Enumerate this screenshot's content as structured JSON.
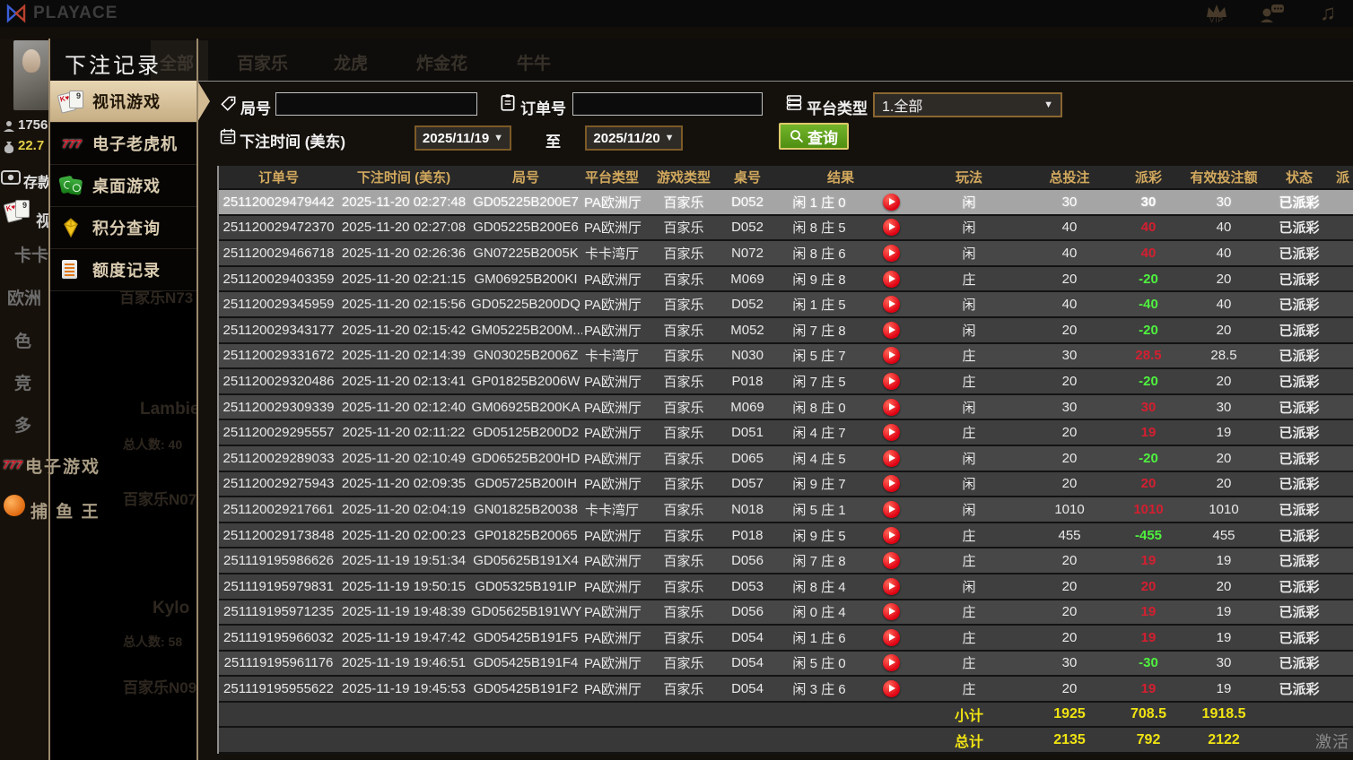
{
  "topbar": {
    "brand": "PLAYACE",
    "vip_label": "VIP"
  },
  "background": {
    "rail": {
      "players_count": "1756",
      "balance": "22.7",
      "deposit_label": "存款",
      "video_label": "视",
      "categories": [
        "卡卡",
        "欧洲",
        "色",
        "竞",
        "多"
      ],
      "slots_label": "电子游戏",
      "fishing_label": "捕 鱼 王"
    },
    "ghost_tabs": [
      "全部",
      "百家乐",
      "龙虎",
      "炸金花",
      "牛牛"
    ],
    "lobby_cards": [
      "百家乐N73",
      "Lambie",
      "总人数: 40",
      "百家乐N07",
      "Kylo",
      "总人数: 58",
      "百家乐N09"
    ]
  },
  "modal": {
    "title": "下注记录",
    "sidebar": {
      "items": [
        {
          "label": "视讯游戏",
          "icon": "video-cards-icon",
          "active": true
        },
        {
          "label": "电子老虎机",
          "icon": "slots-777-icon",
          "active": false
        },
        {
          "label": "桌面游戏",
          "icon": "table-games-icon",
          "active": false
        },
        {
          "label": "积分查询",
          "icon": "points-diamond-icon",
          "active": false
        },
        {
          "label": "额度记录",
          "icon": "records-doc-icon",
          "active": false
        }
      ]
    },
    "filters": {
      "round_label": "局号",
      "round_value": "",
      "order_label": "订单号",
      "order_value": "",
      "platform_label": "平台类型",
      "platform_value": "1.全部",
      "time_label": "下注时间 (美东)",
      "date_from": "2025/11/19",
      "to_label": "至",
      "date_to": "2025/11/20",
      "search_label": "查询"
    },
    "table": {
      "headers": [
        "订单号",
        "下注时间 (美东)",
        "局号",
        "平台类型",
        "游戏类型",
        "桌号",
        "结果",
        "玩法",
        "总投注",
        "派彩",
        "有效投注额",
        "状态"
      ],
      "clipped_header": "派",
      "selected_row": 0,
      "rows": [
        [
          "251120029479442",
          "2025-11-20 02:27:48",
          "GD05225B200E7",
          "PA欧洲厅",
          "百家乐",
          "D052",
          "闲 1 庄 0",
          "闲",
          "30",
          "30",
          "30",
          "已派彩"
        ],
        [
          "251120029472370",
          "2025-11-20 02:27:08",
          "GD05225B200E6",
          "PA欧洲厅",
          "百家乐",
          "D052",
          "闲 8 庄 5",
          "闲",
          "40",
          "40",
          "40",
          "已派彩"
        ],
        [
          "251120029466718",
          "2025-11-20 02:26:36",
          "GN07225B2005K",
          "卡卡湾厅",
          "百家乐",
          "N072",
          "闲 8 庄 6",
          "闲",
          "40",
          "40",
          "40",
          "已派彩"
        ],
        [
          "251120029403359",
          "2025-11-20 02:21:15",
          "GM06925B200KI",
          "PA欧洲厅",
          "百家乐",
          "M069",
          "闲 9 庄 8",
          "庄",
          "20",
          "-20",
          "20",
          "已派彩"
        ],
        [
          "251120029345959",
          "2025-11-20 02:15:56",
          "GD05225B200DQ",
          "PA欧洲厅",
          "百家乐",
          "D052",
          "闲 1 庄 5",
          "闲",
          "40",
          "-40",
          "40",
          "已派彩"
        ],
        [
          "251120029343177",
          "2025-11-20 02:15:42",
          "GM05225B200M...",
          "PA欧洲厅",
          "百家乐",
          "M052",
          "闲 7 庄 8",
          "闲",
          "20",
          "-20",
          "20",
          "已派彩"
        ],
        [
          "251120029331672",
          "2025-11-20 02:14:39",
          "GN03025B2006Z",
          "卡卡湾厅",
          "百家乐",
          "N030",
          "闲 5 庄 7",
          "庄",
          "30",
          "28.5",
          "28.5",
          "已派彩"
        ],
        [
          "251120029320486",
          "2025-11-20 02:13:41",
          "GP01825B2006W",
          "PA欧洲厅",
          "百家乐",
          "P018",
          "闲 7 庄 5",
          "庄",
          "20",
          "-20",
          "20",
          "已派彩"
        ],
        [
          "251120029309339",
          "2025-11-20 02:12:40",
          "GM06925B200KA",
          "PA欧洲厅",
          "百家乐",
          "M069",
          "闲 8 庄 0",
          "闲",
          "30",
          "30",
          "30",
          "已派彩"
        ],
        [
          "251120029295557",
          "2025-11-20 02:11:22",
          "GD05125B200D2",
          "PA欧洲厅",
          "百家乐",
          "D051",
          "闲 4 庄 7",
          "庄",
          "20",
          "19",
          "19",
          "已派彩"
        ],
        [
          "251120029289033",
          "2025-11-20 02:10:49",
          "GD06525B200HD",
          "PA欧洲厅",
          "百家乐",
          "D065",
          "闲 4 庄 5",
          "闲",
          "20",
          "-20",
          "20",
          "已派彩"
        ],
        [
          "251120029275943",
          "2025-11-20 02:09:35",
          "GD05725B200IH",
          "PA欧洲厅",
          "百家乐",
          "D057",
          "闲 9 庄 7",
          "闲",
          "20",
          "20",
          "20",
          "已派彩"
        ],
        [
          "251120029217661",
          "2025-11-20 02:04:19",
          "GN01825B20038",
          "卡卡湾厅",
          "百家乐",
          "N018",
          "闲 5 庄 1",
          "闲",
          "1010",
          "1010",
          "1010",
          "已派彩"
        ],
        [
          "251120029173848",
          "2025-11-20 02:00:23",
          "GP01825B20065",
          "PA欧洲厅",
          "百家乐",
          "P018",
          "闲 9 庄 5",
          "庄",
          "455",
          "-455",
          "455",
          "已派彩"
        ],
        [
          "251119195986626",
          "2025-11-19 19:51:34",
          "GD05625B191X4",
          "PA欧洲厅",
          "百家乐",
          "D056",
          "闲 7 庄 8",
          "庄",
          "20",
          "19",
          "19",
          "已派彩"
        ],
        [
          "251119195979831",
          "2025-11-19 19:50:15",
          "GD05325B191IP",
          "PA欧洲厅",
          "百家乐",
          "D053",
          "闲 8 庄 4",
          "闲",
          "20",
          "20",
          "20",
          "已派彩"
        ],
        [
          "251119195971235",
          "2025-11-19 19:48:39",
          "GD05625B191WY",
          "PA欧洲厅",
          "百家乐",
          "D056",
          "闲 0 庄 4",
          "庄",
          "20",
          "19",
          "19",
          "已派彩"
        ],
        [
          "251119195966032",
          "2025-11-19 19:47:42",
          "GD05425B191F5",
          "PA欧洲厅",
          "百家乐",
          "D054",
          "闲 1 庄 6",
          "庄",
          "20",
          "19",
          "19",
          "已派彩"
        ],
        [
          "251119195961176",
          "2025-11-19 19:46:51",
          "GD05425B191F4",
          "PA欧洲厅",
          "百家乐",
          "D054",
          "闲 5 庄 0",
          "庄",
          "30",
          "-30",
          "30",
          "已派彩"
        ],
        [
          "251119195955622",
          "2025-11-19 19:45:53",
          "GD05425B191F2",
          "PA欧洲厅",
          "百家乐",
          "D054",
          "闲 3 庄 6",
          "庄",
          "20",
          "19",
          "19",
          "已派彩"
        ]
      ],
      "subtotal": {
        "label": "小计",
        "bet": "1925",
        "payout": "708.5",
        "valid": "1918.5"
      },
      "total": {
        "label": "总计",
        "bet": "2135",
        "payout": "792",
        "valid": "2122"
      }
    }
  },
  "watermark": "激活",
  "colors": {
    "accent_gold": "#d2a95e",
    "active_tab": "#d8c4a0",
    "payout_positive": "#d41f30",
    "payout_negative": "#4ef23e",
    "status_green": "#37d637",
    "totals_yellow": "#f0e312",
    "search_green": "#5ea21e"
  }
}
